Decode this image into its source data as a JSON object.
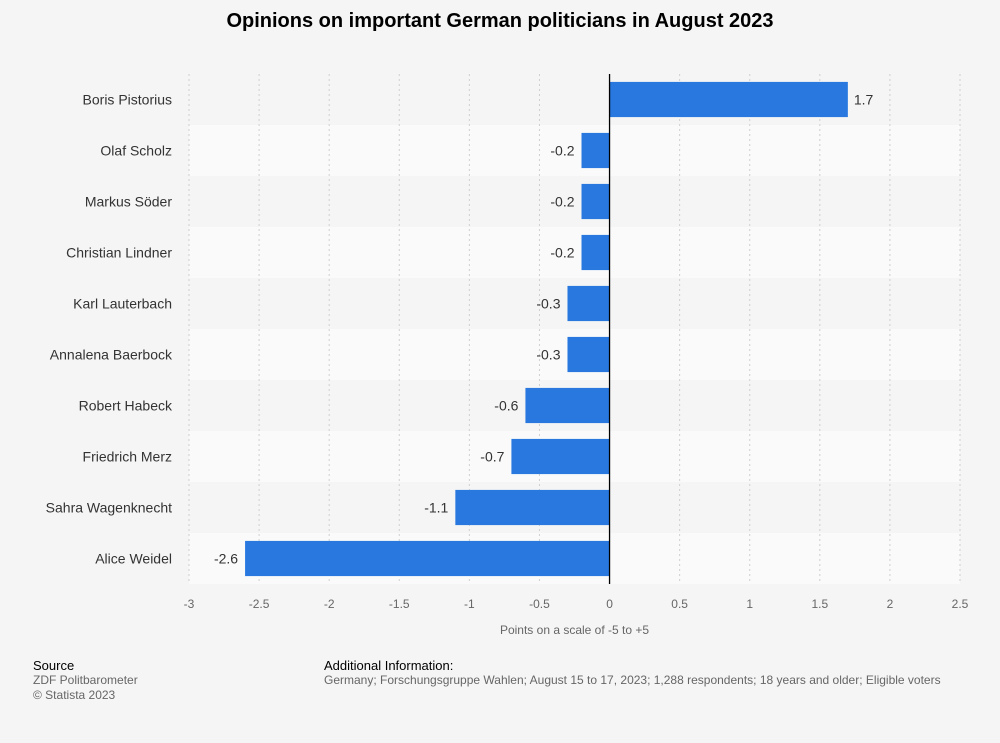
{
  "chart_data": {
    "type": "bar",
    "orientation": "horizontal",
    "title": "Opinions on important German politicians in August 2023",
    "categories": [
      "Boris Pistorius",
      "Olaf Scholz",
      "Markus Söder",
      "Christian Lindner",
      "Karl Lauterbach",
      "Annalena Baerbock",
      "Robert Habeck",
      "Friedrich Merz",
      "Sahra Wagenknecht",
      "Alice Weidel"
    ],
    "values": [
      1.7,
      -0.2,
      -0.2,
      -0.2,
      -0.3,
      -0.3,
      -0.6,
      -0.7,
      -1.1,
      -2.6
    ],
    "value_labels": [
      "1.7",
      "-0.2",
      "-0.2",
      "-0.2",
      "-0.3",
      "-0.3",
      "-0.6",
      "-0.7",
      "-1.1",
      "-2.6"
    ],
    "xlabel": "Points on a scale of -5 to +5",
    "ylabel": "",
    "xlim": [
      -3,
      2.5
    ],
    "xticks": [
      -3,
      -2.5,
      -2,
      -1.5,
      -1,
      -0.5,
      0,
      0.5,
      1,
      1.5,
      2,
      2.5
    ],
    "xtick_labels": [
      "-3",
      "-2.5",
      "-2",
      "-1.5",
      "-1",
      "-0.5",
      "0",
      "0.5",
      "1",
      "1.5",
      "2",
      "2.5"
    ],
    "bar_color": "#2878e0",
    "grid": true
  },
  "footer": {
    "source_label": "Source",
    "source_lines": [
      "ZDF Politbarometer",
      "© Statista 2023"
    ],
    "addinfo_label": "Additional Information:",
    "addinfo_text": "Germany; Forschungsgruppe Wahlen; August 15 to 17, 2023; 1,288 respondents; 18 years and older; Eligible voters"
  }
}
